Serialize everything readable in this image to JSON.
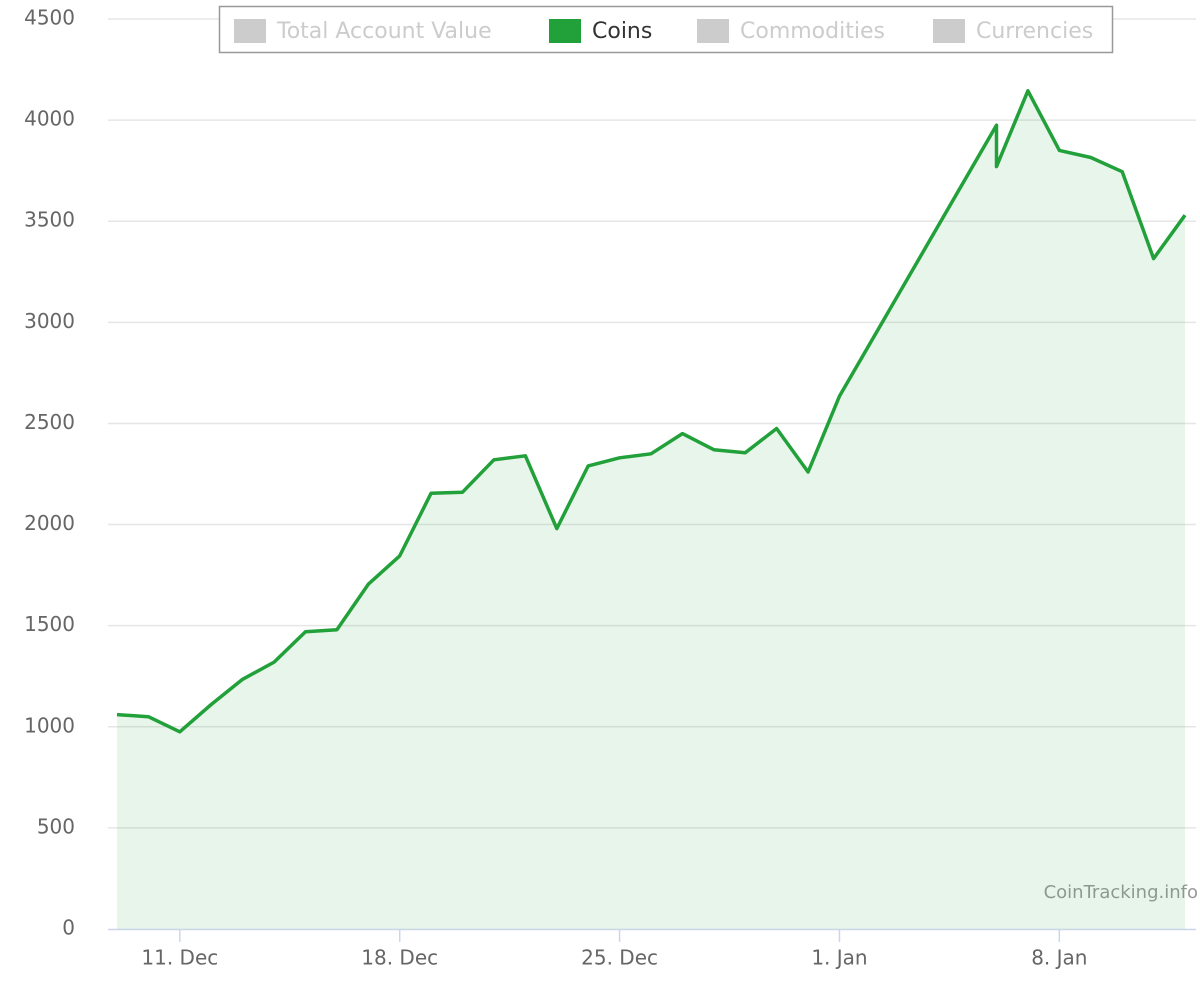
{
  "chart_data": {
    "type": "area",
    "series": [
      {
        "name": "Total Account Value",
        "color": "#cccccc",
        "visible": false
      },
      {
        "name": "Coins",
        "color": "#22a03a",
        "visible": true,
        "x": [
          "9. Dec",
          "10. Dec",
          "11. Dec",
          "12. Dec",
          "13. Dec",
          "14. Dec",
          "15. Dec",
          "16. Dec",
          "17. Dec",
          "18. Dec",
          "19. Dec",
          "20. Dec",
          "21. Dec",
          "22. Dec",
          "23. Dec",
          "24. Dec",
          "25. Dec",
          "26. Dec",
          "27. Dec",
          "28. Dec",
          "29. Dec",
          "30. Dec",
          "31. Dec",
          "1. Jan",
          "6. Jan",
          "6. Jan",
          "7. Jan",
          "8. Jan",
          "9. Jan",
          "10. Jan",
          "11. Jan",
          "12. Jan"
        ],
        "values": [
          1060,
          1050,
          975,
          1110,
          1235,
          1320,
          1470,
          1480,
          1705,
          1845,
          2155,
          2160,
          2320,
          2340,
          1980,
          2290,
          2330,
          2350,
          2450,
          2370,
          2355,
          2475,
          2260,
          2635,
          3975,
          3770,
          4145,
          3850,
          3815,
          3745,
          3315,
          3530
        ]
      },
      {
        "name": "Commodities",
        "color": "#cccccc",
        "visible": false
      },
      {
        "name": "Currencies",
        "color": "#cccccc",
        "visible": false
      }
    ],
    "xlim": [
      "9. Dec",
      "12. Jan"
    ],
    "xticks": [
      "11. Dec",
      "18. Dec",
      "25. Dec",
      "1. Jan",
      "8. Jan"
    ],
    "ylim": [
      0,
      4500
    ],
    "yticks": [
      0,
      500,
      1000,
      1500,
      2000,
      2500,
      3000,
      3500,
      4000,
      4500
    ],
    "grid": true,
    "legend": "top",
    "credit": "CoinTracking.info"
  }
}
